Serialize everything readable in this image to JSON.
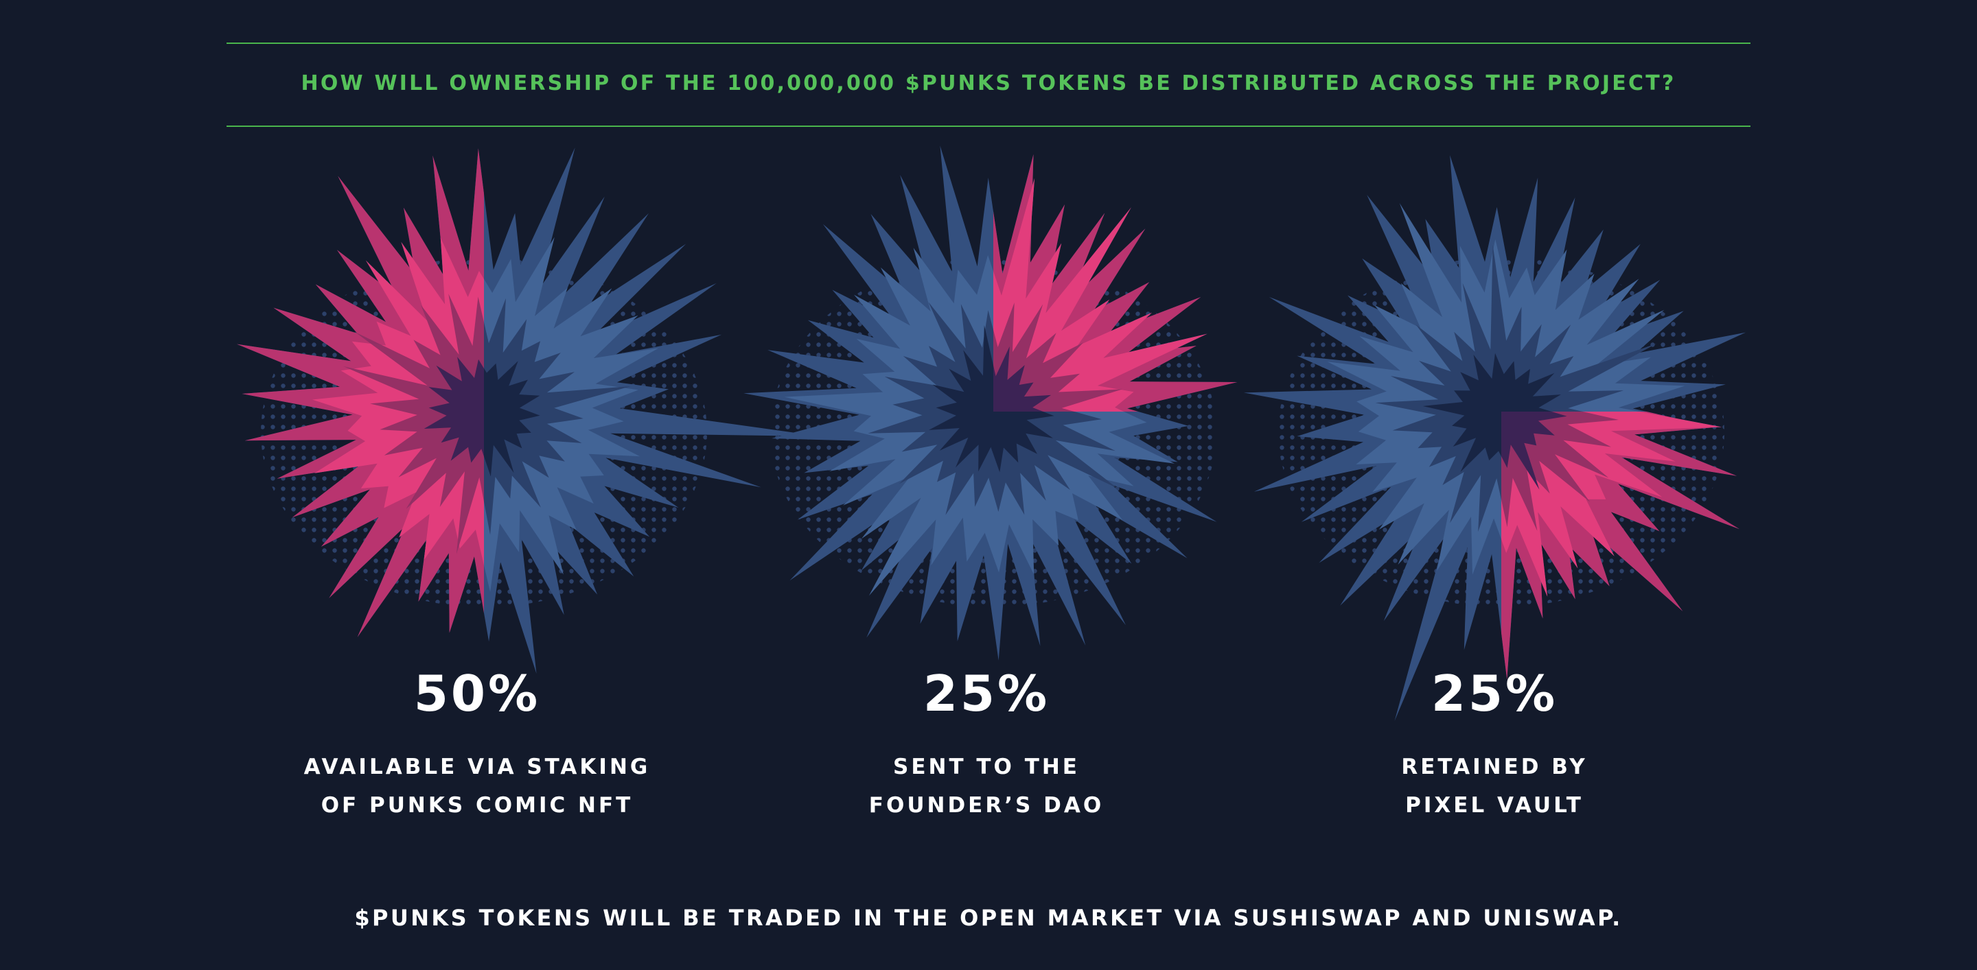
{
  "heading": "HOW WILL OWNERSHIP OF THE 100,000,000 $PUNKS TOKENS BE DISTRIBUTED ACROSS THE PROJECT?",
  "footer": "$PUNKS TOKENS WILL BE TRADED IN THE OPEN MARKET VIA SUSHISWAP AND UNISWAP.",
  "colors": {
    "background": "#131a2b",
    "accent_green": "#56c25a",
    "highlight_pink": "#e23d7c",
    "burst_blue": "#3a5a8e",
    "burst_dark": "#1a2747"
  },
  "chart_data": {
    "type": "pie",
    "title": "",
    "categories": [
      "AVAILABLE VIA STAKING OF PUNKS COMIC NFT",
      "SENT TO THE FOUNDER'S DAO",
      "RETAINED BY PIXEL VAULT"
    ],
    "values": [
      50,
      25,
      25
    ],
    "unit": "%",
    "slices": [
      {
        "value": 50,
        "value_label": "50%",
        "label_lines": [
          "AVAILABLE VIA STAKING",
          "OF PUNKS COMIC NFT"
        ],
        "highlight_quadrants": [
          "top-left",
          "bottom-left"
        ]
      },
      {
        "value": 25,
        "value_label": "25%",
        "label_lines": [
          "SENT TO THE",
          "FOUNDER’S DAO"
        ],
        "highlight_quadrants": [
          "top-right"
        ]
      },
      {
        "value": 25,
        "value_label": "25%",
        "label_lines": [
          "RETAINED BY",
          "PIXEL VAULT"
        ],
        "highlight_quadrants": [
          "bottom-right"
        ]
      }
    ]
  }
}
